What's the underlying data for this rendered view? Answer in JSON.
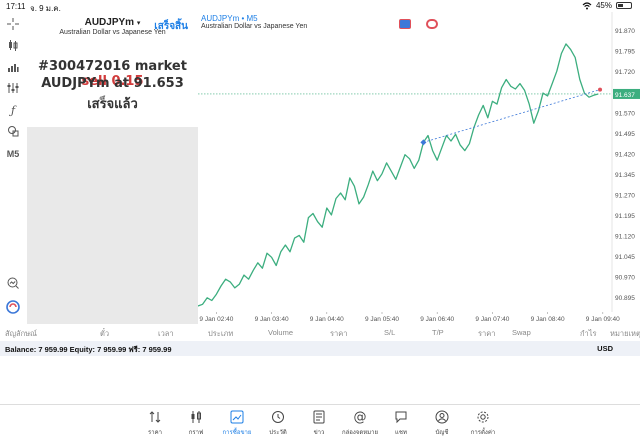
{
  "status": {
    "time": "17:11",
    "date": "จ. 9 ม.ค.",
    "battery": "45%",
    "battery_level": 0.45
  },
  "toolbar": {
    "timeframe": "M5"
  },
  "panel": {
    "symbol": "AUDJPYm",
    "description": "Australian Dollar vs Japanese Yen",
    "done_button": "เสร็จสิ้น",
    "message_line1_prefix": "#300472016 market",
    "message_line1_action": "sell 0.15",
    "message_line2_prefix": "AUDJPYm at",
    "message_line2_price": "91.653",
    "message_line3": "เสร็จแล้ว"
  },
  "chart": {
    "title": "AUDJPYm • M5",
    "subtitle": "Australian Dollar vs Japanese Yen",
    "current_price_label": "91.637",
    "icon_colors": {
      "left": "#e0505a",
      "right": "#3c78d8"
    }
  },
  "chart_data": {
    "type": "line",
    "title": "AUDJPYm • M5",
    "xlabel": "",
    "ylabel": "",
    "x_ticks": [
      "9 Jan 02:40",
      "9 Jan 03:40",
      "9 Jan 04:40",
      "9 Jan 05:40",
      "9 Jan 06:40",
      "9 Jan 07:40",
      "9 Jan 08:40",
      "9 Jan 09:40"
    ],
    "y_ticks": [
      "91.870",
      "91.795",
      "91.720",
      "91.645",
      "91.570",
      "91.495",
      "91.420",
      "91.345",
      "91.270",
      "91.195",
      "91.120",
      "91.045",
      "90.970",
      "90.895"
    ],
    "ylim": [
      90.84,
      91.9
    ],
    "grid": false,
    "line_color": "#3cae7f",
    "current_price": 91.637,
    "entry_price": 91.653,
    "x_range_minutes": [
      -20,
      430
    ],
    "series": [
      {
        "values": [
          [
            -20,
            90.862
          ],
          [
            -15,
            90.868
          ],
          [
            -10,
            90.892
          ],
          [
            -5,
            90.882
          ],
          [
            0,
            90.905
          ],
          [
            5,
            90.935
          ],
          [
            10,
            90.96
          ],
          [
            15,
            90.95
          ],
          [
            20,
            90.928
          ],
          [
            25,
            90.942
          ],
          [
            30,
            90.975
          ],
          [
            35,
            90.96
          ],
          [
            40,
            90.992
          ],
          [
            45,
            91.02
          ],
          [
            50,
            91.0
          ],
          [
            55,
            91.055
          ],
          [
            60,
            91.04
          ],
          [
            65,
            91.01
          ],
          [
            70,
            91.06
          ],
          [
            75,
            91.085
          ],
          [
            80,
            91.06
          ],
          [
            85,
            91.11
          ],
          [
            90,
            91.12
          ],
          [
            95,
            91.095
          ],
          [
            100,
            91.185
          ],
          [
            105,
            91.2
          ],
          [
            110,
            91.17
          ],
          [
            115,
            91.15
          ],
          [
            120,
            91.22
          ],
          [
            125,
            91.195
          ],
          [
            130,
            91.255
          ],
          [
            135,
            91.275
          ],
          [
            140,
            91.25
          ],
          [
            145,
            91.33
          ],
          [
            150,
            91.3
          ],
          [
            155,
            91.235
          ],
          [
            160,
            91.26
          ],
          [
            165,
            91.305
          ],
          [
            170,
            91.355
          ],
          [
            175,
            91.32
          ],
          [
            180,
            91.345
          ],
          [
            185,
            91.385
          ],
          [
            190,
            91.355
          ],
          [
            195,
            91.325
          ],
          [
            200,
            91.37
          ],
          [
            205,
            91.415
          ],
          [
            210,
            91.4
          ],
          [
            215,
            91.365
          ],
          [
            220,
            91.395
          ],
          [
            225,
            91.46
          ],
          [
            230,
            91.485
          ],
          [
            235,
            91.43
          ],
          [
            240,
            91.395
          ],
          [
            245,
            91.44
          ],
          [
            250,
            91.485
          ],
          [
            255,
            91.465
          ],
          [
            260,
            91.49
          ],
          [
            265,
            91.45
          ],
          [
            270,
            91.43
          ],
          [
            275,
            91.455
          ],
          [
            280,
            91.515
          ],
          [
            285,
            91.56
          ],
          [
            290,
            91.595
          ],
          [
            295,
            91.55
          ],
          [
            300,
            91.61
          ],
          [
            305,
            91.6
          ],
          [
            310,
            91.66
          ],
          [
            315,
            91.69
          ],
          [
            320,
            91.665
          ],
          [
            325,
            91.655
          ],
          [
            330,
            91.675
          ],
          [
            335,
            91.65
          ],
          [
            340,
            91.6
          ],
          [
            345,
            91.53
          ],
          [
            350,
            91.575
          ],
          [
            355,
            91.64
          ],
          [
            360,
            91.63
          ],
          [
            365,
            91.675
          ],
          [
            370,
            91.72
          ],
          [
            375,
            91.785
          ],
          [
            380,
            91.82
          ],
          [
            385,
            91.8
          ],
          [
            390,
            91.77
          ],
          [
            395,
            91.69
          ],
          [
            400,
            91.64
          ],
          [
            405,
            91.625
          ],
          [
            410,
            91.632
          ],
          [
            415,
            91.637
          ]
        ]
      }
    ]
  },
  "columns": [
    "สัญลักษณ์",
    "ตั๋ว",
    "เวลา",
    "ประเภท",
    "Volume",
    "ราคา",
    "S/L",
    "T/P",
    "ราคา",
    "Swap",
    "กำไร",
    "หมายเหตุ"
  ],
  "balance": {
    "text": "Balance: 7 959.99 Equity: 7 959.99 ฟรี: 7 959.99",
    "currency": "USD"
  },
  "tabs": [
    {
      "label": "ราคา",
      "icon": "arrows-updown-icon"
    },
    {
      "label": "กราฟ",
      "icon": "candles-icon"
    },
    {
      "label": "การซื้อขาย",
      "icon": "trade-chart-icon"
    },
    {
      "label": "ประวัติ",
      "icon": "history-icon"
    },
    {
      "label": "ข่าว",
      "icon": "news-icon"
    },
    {
      "label": "กล่องจดหมาย",
      "icon": "at-icon"
    },
    {
      "label": "แชท",
      "icon": "chat-icon"
    },
    {
      "label": "บัญชี",
      "icon": "account-icon"
    },
    {
      "label": "การตั้งค่า",
      "icon": "gear-icon"
    }
  ]
}
